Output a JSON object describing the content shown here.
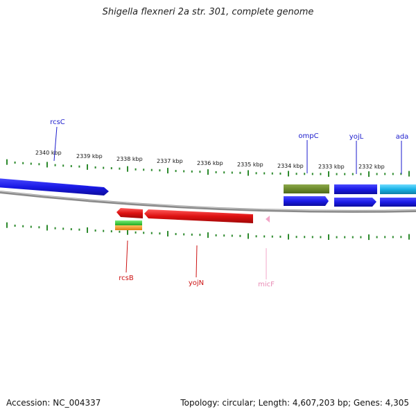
{
  "title": "Shigella flexneri 2a str. 301, complete genome",
  "footer": {
    "accession": "Accession: NC_004337",
    "summary": "Topology: circular; Length: 4,607,203 bp; Genes: 4,305"
  },
  "colors": {
    "backbone": "#8a8a8a",
    "ticks": "#2d8a2d",
    "label_line_forward": "#1a1acc",
    "label_line_reverse": "#cc1111"
  },
  "kbp_labels": [
    "2340 kbp",
    "2339 kbp",
    "2338 kbp",
    "2337 kbp",
    "2336 kbp",
    "2335 kbp",
    "2334 kbp",
    "2333 kbp",
    "2332 kbp"
  ],
  "gene_labels": {
    "rcsC": "rcsC",
    "ompC": "ompC",
    "yojL": "yojL",
    "ada": "ada",
    "rcsB": "rcsB",
    "yojN": "yojN",
    "micF": "micF"
  },
  "features": [
    {
      "name": "rcsC",
      "strand": "forward",
      "color": "#1a1ae6"
    },
    {
      "name": "ompC",
      "strand": "forward",
      "color": "#1a1ae6"
    },
    {
      "name": "ompC-region",
      "strand": "forward",
      "color": "#6e8b2e"
    },
    {
      "name": "yojL",
      "strand": "forward",
      "color": "#1a1ae6"
    },
    {
      "name": "ada",
      "strand": "forward",
      "color": "#1a1ae6"
    },
    {
      "name": "ada-region",
      "strand": "forward",
      "color": "#19b2e6"
    },
    {
      "name": "rcsB",
      "strand": "reverse",
      "color": "#dd1111"
    },
    {
      "name": "yojN",
      "strand": "reverse",
      "color": "#dd1111"
    },
    {
      "name": "micF",
      "strand": "reverse",
      "color": "#f3a6c8"
    },
    {
      "name": "rcsB-region-1",
      "strand": "reverse",
      "color": "#33cc33"
    },
    {
      "name": "rcsB-region-2",
      "strand": "reverse",
      "color": "#f59a1a"
    }
  ]
}
